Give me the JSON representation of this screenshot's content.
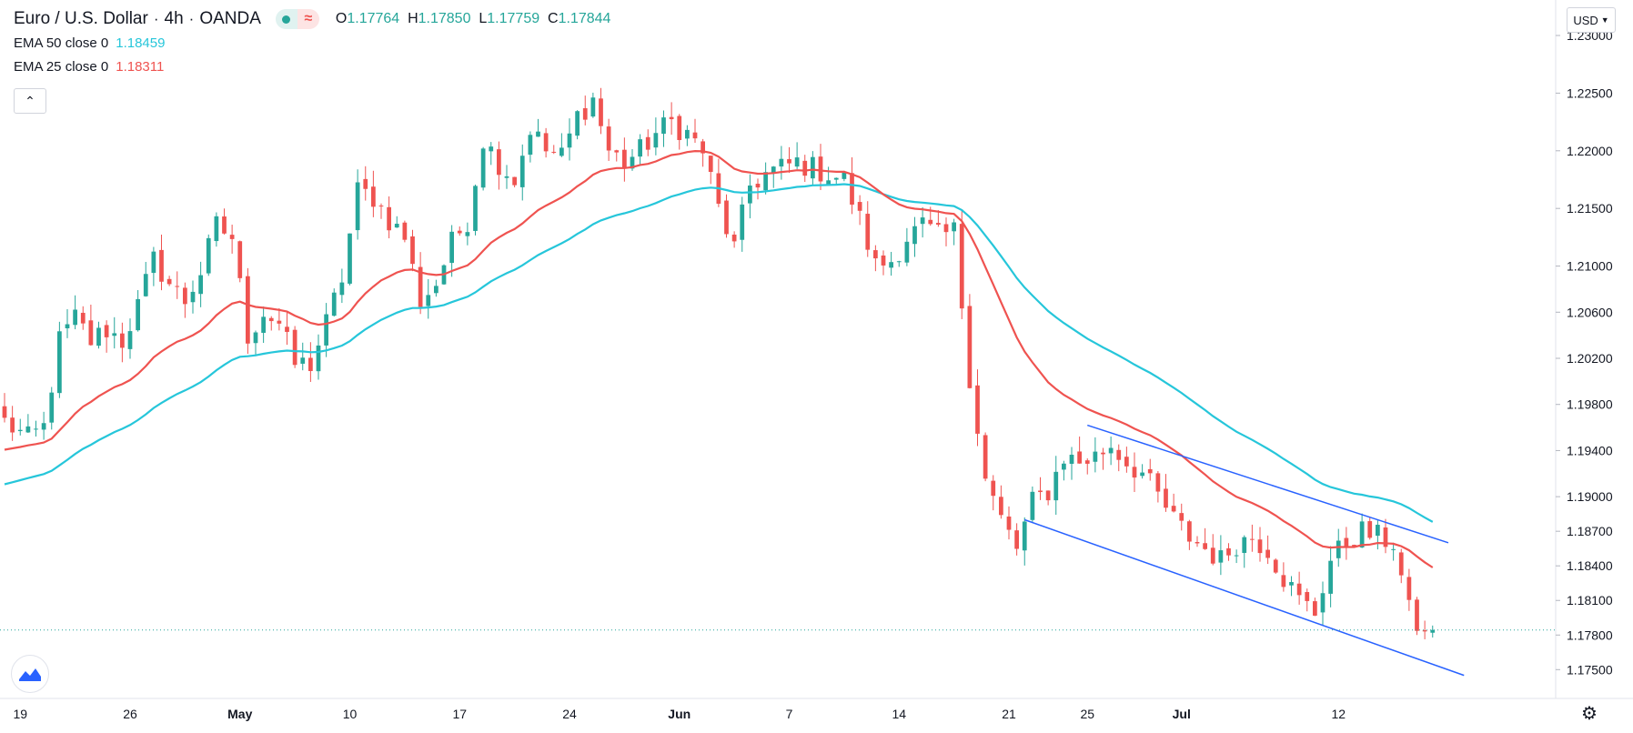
{
  "header": {
    "symbol": "Euro / U.S. Dollar",
    "interval": "4h",
    "exchange": "OANDA",
    "open_label": "O",
    "open": "1.17764",
    "high_label": "H",
    "high": "1.17850",
    "low_label": "L",
    "low": "1.17759",
    "close_label": "C",
    "close": "1.17844"
  },
  "indicators": [
    {
      "label": "EMA 50 close 0",
      "value": "1.18459",
      "color": "#26c6da"
    },
    {
      "label": "EMA 25 close 0",
      "value": "1.18311",
      "color": "#ef5350"
    }
  ],
  "currency_button": "USD",
  "icons": {
    "collapse": "chevron-up-icon",
    "logo": "tradingview-logo-icon",
    "settings": "gear-icon"
  },
  "colors": {
    "up": "#26a69a",
    "down": "#ef5350",
    "ema50": "#26c6da",
    "ema25": "#ef5350",
    "trendline": "#2962ff"
  },
  "chart_data": {
    "type": "candlestick",
    "title": "Euro / U.S. Dollar, 4h, OANDA",
    "y_ticks": [
      "1.23000",
      "1.22500",
      "1.22000",
      "1.21500",
      "1.21000",
      "1.20600",
      "1.20200",
      "1.19800",
      "1.19400",
      "1.19000",
      "1.18700",
      "1.18400",
      "1.18100",
      "1.17800",
      "1.17500"
    ],
    "ylim": [
      1.1725,
      1.2315
    ],
    "x_ticks": [
      "19",
      "26",
      "May",
      "10",
      "17",
      "24",
      "Jun",
      "7",
      "14",
      "21",
      "25",
      "Jul",
      "12"
    ],
    "x_tick_index": [
      2,
      16,
      30,
      44,
      58,
      72,
      86,
      100,
      114,
      128,
      138,
      150,
      170
    ],
    "candle_count": 200,
    "last_price": 1.17844,
    "close_path": [
      {
        "i": 0,
        "v": 1.1965
      },
      {
        "i": 3,
        "v": 1.195
      },
      {
        "i": 5,
        "v": 1.196
      },
      {
        "i": 7,
        "v": 1.2035
      },
      {
        "i": 9,
        "v": 1.2055
      },
      {
        "i": 11,
        "v": 1.2035
      },
      {
        "i": 13,
        "v": 1.2045
      },
      {
        "i": 15,
        "v": 1.2035
      },
      {
        "i": 17,
        "v": 1.2065
      },
      {
        "i": 19,
        "v": 1.2105
      },
      {
        "i": 21,
        "v": 1.2085
      },
      {
        "i": 23,
        "v": 1.207
      },
      {
        "i": 25,
        "v": 1.2095
      },
      {
        "i": 27,
        "v": 1.2135
      },
      {
        "i": 29,
        "v": 1.2125
      },
      {
        "i": 31,
        "v": 1.204
      },
      {
        "i": 33,
        "v": 1.206
      },
      {
        "i": 35,
        "v": 1.205
      },
      {
        "i": 37,
        "v": 1.2015
      },
      {
        "i": 39,
        "v": 1.2015
      },
      {
        "i": 41,
        "v": 1.205
      },
      {
        "i": 43,
        "v": 1.209
      },
      {
        "i": 45,
        "v": 1.2165
      },
      {
        "i": 47,
        "v": 1.216
      },
      {
        "i": 49,
        "v": 1.214
      },
      {
        "i": 51,
        "v": 1.2125
      },
      {
        "i": 53,
        "v": 1.207
      },
      {
        "i": 55,
        "v": 1.2085
      },
      {
        "i": 57,
        "v": 1.212
      },
      {
        "i": 59,
        "v": 1.214
      },
      {
        "i": 61,
        "v": 1.221
      },
      {
        "i": 63,
        "v": 1.219
      },
      {
        "i": 65,
        "v": 1.2175
      },
      {
        "i": 67,
        "v": 1.222
      },
      {
        "i": 69,
        "v": 1.22
      },
      {
        "i": 71,
        "v": 1.2195
      },
      {
        "i": 73,
        "v": 1.223
      },
      {
        "i": 75,
        "v": 1.2245
      },
      {
        "i": 77,
        "v": 1.22
      },
      {
        "i": 79,
        "v": 1.219
      },
      {
        "i": 81,
        "v": 1.22
      },
      {
        "i": 83,
        "v": 1.2215
      },
      {
        "i": 85,
        "v": 1.2225
      },
      {
        "i": 87,
        "v": 1.2215
      },
      {
        "i": 89,
        "v": 1.22
      },
      {
        "i": 91,
        "v": 1.215
      },
      {
        "i": 93,
        "v": 1.2115
      },
      {
        "i": 95,
        "v": 1.217
      },
      {
        "i": 97,
        "v": 1.218
      },
      {
        "i": 99,
        "v": 1.2185
      },
      {
        "i": 101,
        "v": 1.219
      },
      {
        "i": 103,
        "v": 1.2185
      },
      {
        "i": 105,
        "v": 1.218
      },
      {
        "i": 107,
        "v": 1.2175
      },
      {
        "i": 109,
        "v": 1.214
      },
      {
        "i": 111,
        "v": 1.21
      },
      {
        "i": 113,
        "v": 1.2105
      },
      {
        "i": 115,
        "v": 1.2125
      },
      {
        "i": 117,
        "v": 1.2135
      },
      {
        "i": 119,
        "v": 1.2125
      },
      {
        "i": 121,
        "v": 1.213
      },
      {
        "i": 123,
        "v": 1.2005
      },
      {
        "i": 125,
        "v": 1.1915
      },
      {
        "i": 127,
        "v": 1.188
      },
      {
        "i": 129,
        "v": 1.1855
      },
      {
        "i": 131,
        "v": 1.1895
      },
      {
        "i": 133,
        "v": 1.1905
      },
      {
        "i": 135,
        "v": 1.1935
      },
      {
        "i": 137,
        "v": 1.193
      },
      {
        "i": 139,
        "v": 1.1935
      },
      {
        "i": 141,
        "v": 1.1945
      },
      {
        "i": 143,
        "v": 1.193
      },
      {
        "i": 145,
        "v": 1.192
      },
      {
        "i": 147,
        "v": 1.19
      },
      {
        "i": 149,
        "v": 1.188
      },
      {
        "i": 151,
        "v": 1.1865
      },
      {
        "i": 153,
        "v": 1.1855
      },
      {
        "i": 155,
        "v": 1.1845
      },
      {
        "i": 157,
        "v": 1.186
      },
      {
        "i": 159,
        "v": 1.1865
      },
      {
        "i": 161,
        "v": 1.1855
      },
      {
        "i": 163,
        "v": 1.183
      },
      {
        "i": 165,
        "v": 1.181
      },
      {
        "i": 167,
        "v": 1.18
      },
      {
        "i": 169,
        "v": 1.1845
      },
      {
        "i": 171,
        "v": 1.186
      },
      {
        "i": 173,
        "v": 1.187
      },
      {
        "i": 175,
        "v": 1.1865
      },
      {
        "i": 177,
        "v": 1.186
      },
      {
        "i": 179,
        "v": 1.18
      },
      {
        "i": 181,
        "v": 1.1778
      },
      {
        "i": 182,
        "v": 1.1784
      }
    ],
    "trendlines": [
      {
        "name": "channel-upper",
        "from": {
          "i": 138,
          "v": 1.1962
        },
        "to": {
          "i": 184,
          "v": 1.186
        }
      },
      {
        "name": "channel-lower",
        "from": {
          "i": 130,
          "v": 1.188
        },
        "to": {
          "i": 186,
          "v": 1.1745
        }
      }
    ],
    "series": [
      {
        "name": "EMA 50 close 0",
        "color": "#26c6da",
        "period": 50
      },
      {
        "name": "EMA 25 close 0",
        "color": "#ef5350",
        "period": 25
      }
    ]
  }
}
